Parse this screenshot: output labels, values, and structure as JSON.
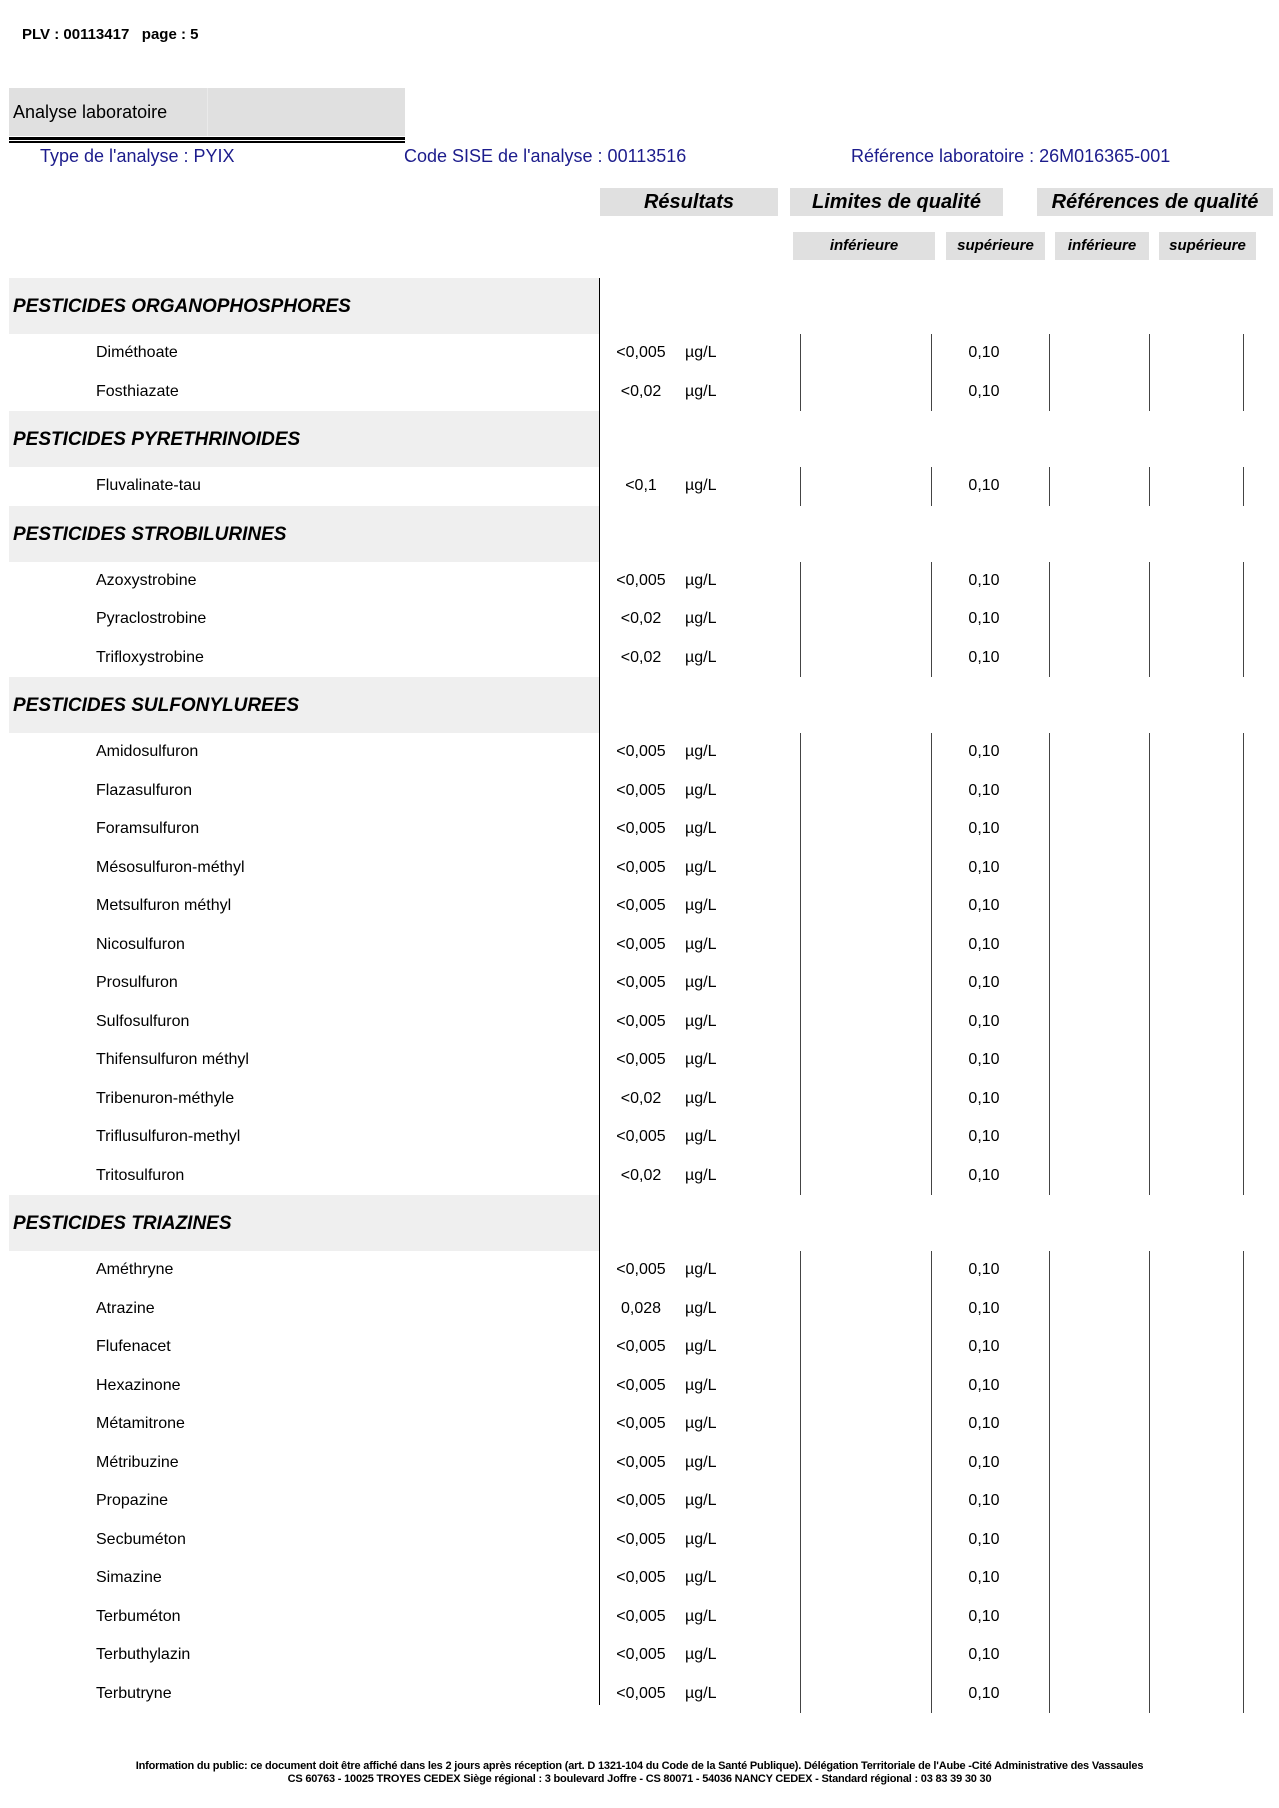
{
  "header": {
    "plv": "PLV : 00113417   page : 5"
  },
  "section_title": "Analyse laboratoire",
  "info": {
    "type": "Type de l'analyse : PYIX",
    "code_sise": "Code SISE de l'analyse : 00113516",
    "ref_labo": "Référence laboratoire : 26M016365-001"
  },
  "columns": {
    "resultats": "Résultats",
    "limites": "Limites de qualité",
    "references": "Références de qualité",
    "lim_inf": "inférieure",
    "lim_sup": "supérieure",
    "ref_inf": "inférieure",
    "ref_sup": "supérieure"
  },
  "groups": [
    {
      "title": "PESTICIDES ORGANOPHOSPHORES",
      "items": [
        {
          "name": "Diméthoate",
          "result": "<0,005",
          "unit": "µg/L",
          "lim_sup": "0,10"
        },
        {
          "name": "Fosthiazate",
          "result": "<0,02",
          "unit": "µg/L",
          "lim_sup": "0,10"
        }
      ]
    },
    {
      "title": "PESTICIDES PYRETHRINOIDES",
      "items": [
        {
          "name": "Fluvalinate-tau",
          "result": "<0,1",
          "unit": "µg/L",
          "lim_sup": "0,10"
        }
      ]
    },
    {
      "title": "PESTICIDES STROBILURINES",
      "items": [
        {
          "name": "Azoxystrobine",
          "result": "<0,005",
          "unit": "µg/L",
          "lim_sup": "0,10"
        },
        {
          "name": "Pyraclostrobine",
          "result": "<0,02",
          "unit": "µg/L",
          "lim_sup": "0,10"
        },
        {
          "name": "Trifloxystrobine",
          "result": "<0,02",
          "unit": "µg/L",
          "lim_sup": "0,10"
        }
      ]
    },
    {
      "title": "PESTICIDES SULFONYLUREES",
      "items": [
        {
          "name": "Amidosulfuron",
          "result": "<0,005",
          "unit": "µg/L",
          "lim_sup": "0,10"
        },
        {
          "name": "Flazasulfuron",
          "result": "<0,005",
          "unit": "µg/L",
          "lim_sup": "0,10"
        },
        {
          "name": "Foramsulfuron",
          "result": "<0,005",
          "unit": "µg/L",
          "lim_sup": "0,10"
        },
        {
          "name": "Mésosulfuron-méthyl",
          "result": "<0,005",
          "unit": "µg/L",
          "lim_sup": "0,10"
        },
        {
          "name": "Metsulfuron méthyl",
          "result": "<0,005",
          "unit": "µg/L",
          "lim_sup": "0,10"
        },
        {
          "name": "Nicosulfuron",
          "result": "<0,005",
          "unit": "µg/L",
          "lim_sup": "0,10"
        },
        {
          "name": "Prosulfuron",
          "result": "<0,005",
          "unit": "µg/L",
          "lim_sup": "0,10"
        },
        {
          "name": "Sulfosulfuron",
          "result": "<0,005",
          "unit": "µg/L",
          "lim_sup": "0,10"
        },
        {
          "name": "Thifensulfuron méthyl",
          "result": "<0,005",
          "unit": "µg/L",
          "lim_sup": "0,10"
        },
        {
          "name": "Tribenuron-méthyle",
          "result": "<0,02",
          "unit": "µg/L",
          "lim_sup": "0,10"
        },
        {
          "name": "Triflusulfuron-methyl",
          "result": "<0,005",
          "unit": "µg/L",
          "lim_sup": "0,10"
        },
        {
          "name": "Tritosulfuron",
          "result": "<0,02",
          "unit": "µg/L",
          "lim_sup": "0,10"
        }
      ]
    },
    {
      "title": "PESTICIDES TRIAZINES",
      "items": [
        {
          "name": "Améthryne",
          "result": "<0,005",
          "unit": "µg/L",
          "lim_sup": "0,10"
        },
        {
          "name": "Atrazine",
          "result": "0,028",
          "unit": "µg/L",
          "lim_sup": "0,10"
        },
        {
          "name": "Flufenacet",
          "result": "<0,005",
          "unit": "µg/L",
          "lim_sup": "0,10"
        },
        {
          "name": "Hexazinone",
          "result": "<0,005",
          "unit": "µg/L",
          "lim_sup": "0,10"
        },
        {
          "name": "Métamitrone",
          "result": "<0,005",
          "unit": "µg/L",
          "lim_sup": "0,10"
        },
        {
          "name": "Métribuzine",
          "result": "<0,005",
          "unit": "µg/L",
          "lim_sup": "0,10"
        },
        {
          "name": "Propazine",
          "result": "<0,005",
          "unit": "µg/L",
          "lim_sup": "0,10"
        },
        {
          "name": "Secbuméton",
          "result": "<0,005",
          "unit": "µg/L",
          "lim_sup": "0,10"
        },
        {
          "name": "Simazine",
          "result": "<0,005",
          "unit": "µg/L",
          "lim_sup": "0,10"
        },
        {
          "name": "Terbuméton",
          "result": "<0,005",
          "unit": "µg/L",
          "lim_sup": "0,10"
        },
        {
          "name": "Terbuthylazin",
          "result": "<0,005",
          "unit": "µg/L",
          "lim_sup": "0,10"
        },
        {
          "name": "Terbutryne",
          "result": "<0,005",
          "unit": "µg/L",
          "lim_sup": "0,10"
        }
      ]
    }
  ],
  "footer": {
    "line1": "Information du  public:  ce  document doit  être affiché  dans les 2 jours  après réception  (art. D 1321-104 du Code de la Santé Publique). Délégation Territoriale de l'Aube -Cité Administrative des Vassaules",
    "line2": "CS 60763 - 10025 TROYES CEDEX Siège régional : 3 boulevard Joffre - CS 80071 - 54036 NANCY CEDEX - Standard régional : 03 83 39 30 30"
  }
}
